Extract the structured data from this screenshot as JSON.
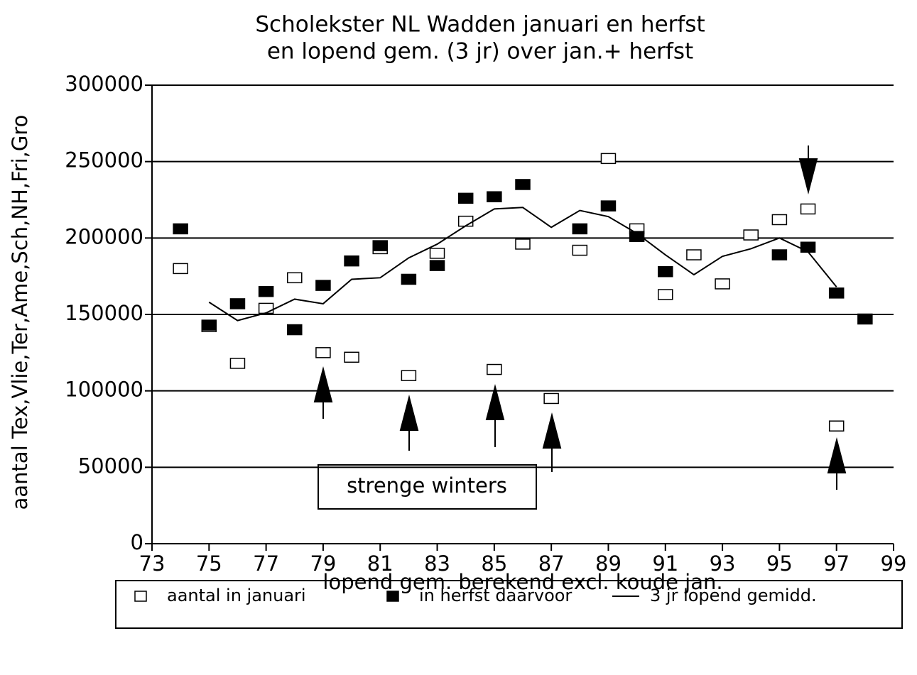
{
  "chart_data": {
    "type": "scatter",
    "title": [
      "Scholekster NL Wadden januari en herfst",
      "en lopend gem. (3 jr) over jan.+ herfst"
    ],
    "x_label": "lopend gem. berekend excl. koude jan.",
    "y_label": "aantal Tex,Vlie,Ter,Ame,Sch,NH,Fri,Gro",
    "annotation": "strenge winters",
    "x": [
      74,
      75,
      76,
      77,
      78,
      79,
      80,
      81,
      82,
      83,
      84,
      85,
      86,
      87,
      88,
      89,
      90,
      91,
      92,
      93,
      94,
      95,
      96,
      97,
      98
    ],
    "series": [
      {
        "name": "aantal in januari",
        "marker": "open-square",
        "color": "#000000",
        "values": [
          180000,
          142000,
          118000,
          154000,
          174000,
          125000,
          122000,
          193000,
          110000,
          190000,
          211000,
          114000,
          196000,
          95000,
          192000,
          252000,
          206000,
          163000,
          189000,
          170000,
          202000,
          212000,
          219000,
          77000,
          null
        ]
      },
      {
        "name": "in herfst daarvoor",
        "marker": "filled-square",
        "color": "#000000",
        "values": [
          206000,
          143000,
          157000,
          165000,
          140000,
          169000,
          185000,
          195000,
          173000,
          182000,
          226000,
          227000,
          235000,
          null,
          206000,
          221000,
          201000,
          178000,
          null,
          null,
          null,
          189000,
          194000,
          164000,
          147000
        ]
      },
      {
        "name": "3 jr lopend gemidd.",
        "marker": "line",
        "color": "#000000",
        "values": [
          null,
          158000,
          146000,
          151000,
          160000,
          157000,
          173000,
          174000,
          187000,
          196000,
          208000,
          219000,
          220000,
          207000,
          218000,
          214000,
          203000,
          189000,
          176000,
          188000,
          193000,
          200000,
          191000,
          168000,
          null
        ]
      }
    ],
    "xlim": [
      73,
      99
    ],
    "xticks": [
      73,
      75,
      77,
      79,
      81,
      83,
      85,
      87,
      89,
      91,
      93,
      95,
      97,
      99
    ],
    "ylim": [
      0,
      300000
    ],
    "yticks": [
      0,
      50000,
      100000,
      150000,
      200000,
      250000,
      300000
    ],
    "grid": true
  }
}
